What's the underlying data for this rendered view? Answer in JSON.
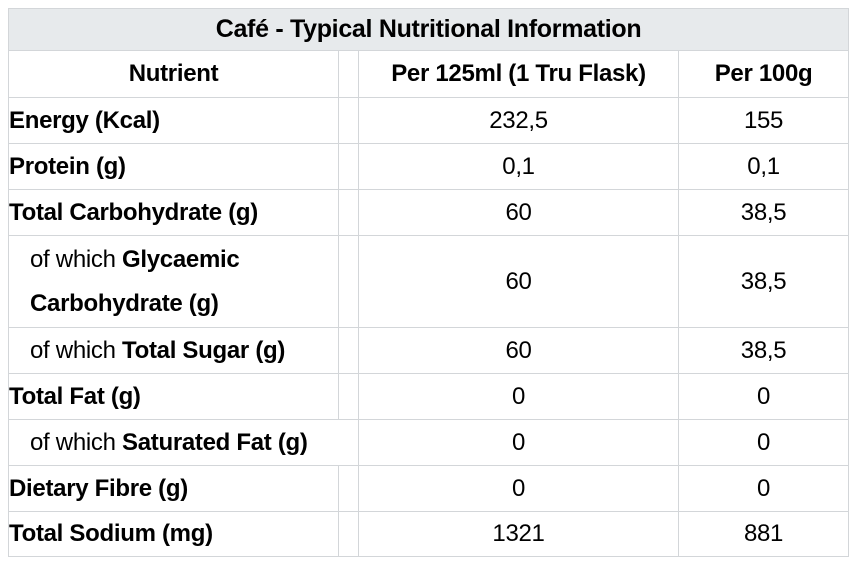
{
  "colors": {
    "page_background": "#ffffff",
    "title_background": "#e7eaec",
    "grid_line": "#d3d6d9",
    "text": "#000000"
  },
  "table": {
    "title": "Café - Typical Nutritional Information",
    "headers": {
      "nutrient": "Nutrient",
      "per125": "Per 125ml (1 Tru Flask)",
      "per100": "Per 100g"
    },
    "rows": [
      {
        "prefix": "",
        "label": "Energy (Kcal)",
        "per125": "232,5",
        "per100": "155"
      },
      {
        "prefix": "",
        "label": "Protein (g)",
        "per125": "0,1",
        "per100": "0,1"
      },
      {
        "prefix": "",
        "label": "Total Carbohydrate (g)",
        "per125": "60",
        "per100": "38,5"
      },
      {
        "prefix": "of which ",
        "label": "Glycaemic Carbohydrate (g)",
        "per125": "60",
        "per100": "38,5"
      },
      {
        "prefix": "of which ",
        "label": "Total Sugar (g)",
        "per125": "60",
        "per100": "38,5"
      },
      {
        "prefix": "",
        "label": "Total Fat (g)",
        "per125": "0",
        "per100": "0"
      },
      {
        "prefix": "of which ",
        "label": "Saturated Fat (g)",
        "per125": "0",
        "per100": "0"
      },
      {
        "prefix": "",
        "label": "Dietary Fibre (g)",
        "per125": "0",
        "per100": "0"
      },
      {
        "prefix": "",
        "label": "Total Sodium (mg)",
        "per125": "1321",
        "per100": "881"
      }
    ]
  },
  "chart_data": {
    "type": "table",
    "title": "Café - Typical Nutritional Information",
    "columns": [
      "Nutrient",
      "Per 125ml (1 Tru Flask)",
      "Per 100g"
    ],
    "rows": [
      [
        "Energy (Kcal)",
        "232,5",
        "155"
      ],
      [
        "Protein (g)",
        "0,1",
        "0,1"
      ],
      [
        "Total Carbohydrate (g)",
        "60",
        "38,5"
      ],
      [
        "of which Glycaemic Carbohydrate (g)",
        "60",
        "38,5"
      ],
      [
        "of which Total Sugar (g)",
        "60",
        "38,5"
      ],
      [
        "Total Fat (g)",
        "0",
        "0"
      ],
      [
        "of which Saturated Fat (g)",
        "0",
        "0"
      ],
      [
        "Dietary Fibre (g)",
        "0",
        "0"
      ],
      [
        "Total Sodium (mg)",
        "1321",
        "881"
      ]
    ],
    "notes": "Decimal values use comma separator; sub-rows are indented 'of which' entries"
  }
}
